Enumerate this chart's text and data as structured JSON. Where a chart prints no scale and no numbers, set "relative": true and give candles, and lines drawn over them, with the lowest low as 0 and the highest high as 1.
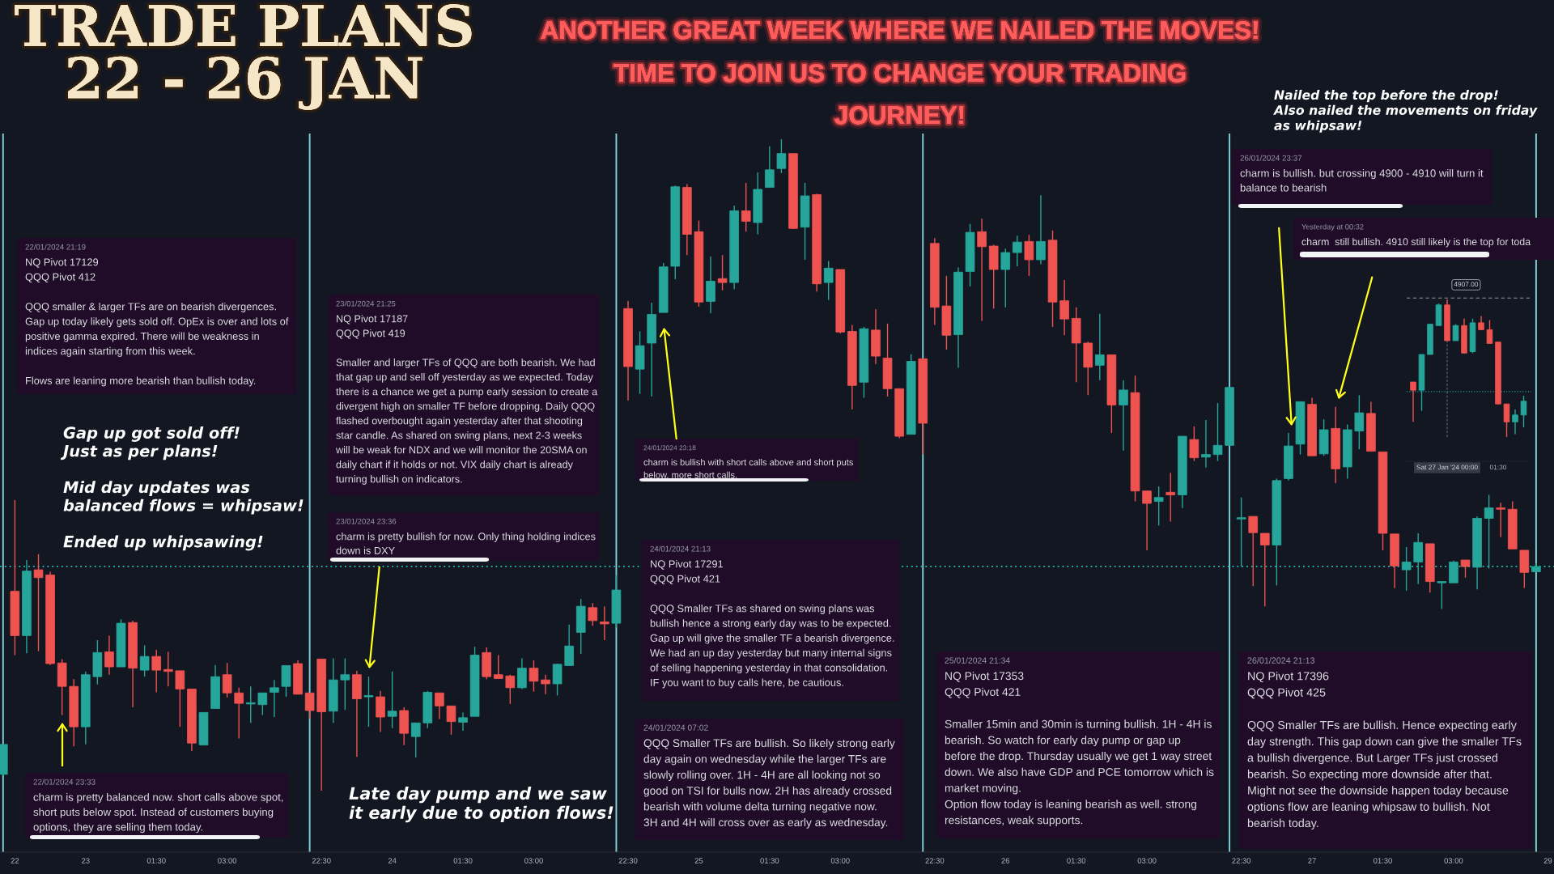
{
  "chart_data": [
    {
      "type": "candlestick",
      "relative": true,
      "title": "TRADE PLANS\n22 - 26 JAN",
      "subtitle": "ANOTHER GREAT WEEK WHERE WE NAILED THE MOVES!\nTIME TO JOIN US TO CHANGE YOUR TRADING\nJOURNEY!",
      "categories": [
        null,
        "22",
        null,
        null,
        null,
        null,
        null,
        "23",
        null,
        null,
        null,
        null,
        null,
        "01:30",
        null,
        null,
        null,
        null,
        null,
        "03:00",
        null,
        null,
        null,
        null,
        null,
        null,
        null,
        "22:30",
        null,
        null,
        null,
        null,
        null,
        "24",
        null,
        null,
        null,
        null,
        null,
        "01:30",
        null,
        null,
        null,
        null,
        null,
        "03:00",
        null,
        null,
        null,
        null,
        null,
        null,
        null,
        "22:30",
        null,
        null,
        null,
        null,
        null,
        "25",
        null,
        null,
        null,
        null,
        null,
        "01:30",
        null,
        null,
        null,
        null,
        null,
        "03:00",
        null,
        null,
        null,
        null,
        null,
        null,
        null,
        "22:30",
        null,
        null,
        null,
        null,
        null,
        "26",
        null,
        null,
        null,
        null,
        null,
        "01:30",
        null,
        null,
        null,
        null,
        null,
        "03:00",
        null,
        null,
        null,
        null,
        null,
        null,
        null,
        "22:30",
        null,
        null,
        null,
        null,
        null,
        "27",
        null,
        null,
        null,
        null,
        null,
        "01:30",
        null,
        null,
        null,
        null,
        null,
        "03:00",
        null,
        null,
        null,
        null,
        null,
        null,
        null,
        "29"
      ],
      "ohlc": [
        [
          0.025,
          0.071,
          0.023,
          0.071
        ],
        [
          0.306,
          0.446,
          0.208,
          0.238
        ],
        [
          0.238,
          0.354,
          0.211,
          0.337
        ],
        [
          0.339,
          0.363,
          0.214,
          0.327
        ],
        [
          0.331,
          0.336,
          0.193,
          0.195
        ],
        [
          0.196,
          0.202,
          0.116,
          0.16
        ],
        [
          0.16,
          0.171,
          0.068,
          0.098
        ],
        [
          0.098,
          0.183,
          0.071,
          0.178
        ],
        [
          0.175,
          0.231,
          0.163,
          0.212
        ],
        [
          0.213,
          0.238,
          0.178,
          0.19
        ],
        [
          0.19,
          0.263,
          0.19,
          0.257
        ],
        [
          0.258,
          0.261,
          0.128,
          0.188
        ],
        [
          0.185,
          0.223,
          0.175,
          0.206
        ],
        [
          0.206,
          0.216,
          0.151,
          0.185
        ],
        [
          0.186,
          0.213,
          0.16,
          0.183
        ],
        [
          0.184,
          0.184,
          0.098,
          0.156
        ],
        [
          0.156,
          0.156,
          0.061,
          0.073
        ],
        [
          0.07,
          0.12,
          0.07,
          0.12
        ],
        [
          0.126,
          0.193,
          0.126,
          0.175
        ],
        [
          0.178,
          0.196,
          0.143,
          0.15
        ],
        [
          0.15,
          0.158,
          0.08,
          0.134
        ],
        [
          0.133,
          0.16,
          0.104,
          0.135
        ],
        [
          0.132,
          0.15,
          0.116,
          0.15
        ],
        [
          0.151,
          0.17,
          0.113,
          0.158
        ],
        [
          0.16,
          0.192,
          0.144,
          0.192
        ],
        [
          0.195,
          0.2,
          0.148,
          0.148
        ],
        [
          0.15,
          0.15,
          0.111,
          0.123
        ],
        [
          0.202,
          0.202,
          0,
          0.121
        ],
        [
          0.122,
          0.203,
          0.104,
          0.17
        ],
        [
          0.17,
          0.203,
          0.124,
          0.178
        ],
        [
          0.178,
          0.184,
          0.052,
          0.141
        ],
        [
          0.144,
          0.175,
          0.098,
          0.146
        ],
        [
          0.144,
          0.153,
          0.09,
          0.113
        ],
        [
          0.114,
          0.183,
          0.096,
          0.122
        ],
        [
          0.123,
          0.128,
          0.07,
          0.088
        ],
        [
          0.083,
          0.104,
          0.051,
          0.104
        ],
        [
          0.104,
          0.153,
          0.096,
          0.151
        ],
        [
          0.15,
          0.15,
          0.11,
          0.13
        ],
        [
          0.13,
          0.13,
          0.086,
          0.106
        ],
        [
          0.105,
          0.12,
          0.092,
          0.112
        ],
        [
          0.114,
          0.221,
          0.114,
          0.208
        ],
        [
          0.212,
          0.22,
          0.171,
          0.175
        ],
        [
          0.178,
          0.208,
          0.172,
          0.172
        ],
        [
          0.176,
          0.178,
          0.133,
          0.158
        ],
        [
          0.158,
          0.203,
          0.156,
          0.188
        ],
        [
          0.188,
          0.2,
          0.152,
          0.168
        ],
        [
          0.17,
          0.178,
          0.148,
          0.164
        ],
        [
          0.164,
          0.195,
          0.146,
          0.194
        ],
        [
          0.192,
          0.255,
          0.192,
          0.222
        ],
        [
          0.243,
          0.294,
          0.21,
          0.283
        ],
        [
          0.281,
          0.288,
          0.253,
          0.261
        ],
        [
          0.259,
          0.283,
          0.231,
          0.256
        ],
        [
          0.257,
          0.331,
          0.25,
          0.308
        ],
        [
          0.74,
          0.752,
          0.599,
          0.651
        ],
        [
          0.647,
          0.705,
          0.609,
          0.683
        ],
        [
          0.687,
          0.749,
          0.605,
          0.731
        ],
        [
          0.734,
          0.81,
          0.734,
          0.804
        ],
        [
          0.805,
          0.929,
          0.785,
          0.927
        ],
        [
          0.926,
          0.931,
          0.822,
          0.854
        ],
        [
          0.858,
          0.875,
          0.743,
          0.75
        ],
        [
          0.751,
          0.82,
          0.733,
          0.782
        ],
        [
          0.786,
          0.822,
          0.768,
          0.78
        ],
        [
          0.78,
          0.898,
          0.77,
          0.89
        ],
        [
          0.89,
          0.933,
          0.858,
          0.874
        ],
        [
          0.872,
          0.949,
          0.854,
          0.923
        ],
        [
          0.926,
          0.989,
          0.926,
          0.953
        ],
        [
          0.955,
          1,
          0.948,
          0.978
        ],
        [
          0.978,
          0.978,
          0.862,
          0.863
        ],
        [
          0.865,
          0.933,
          0.815,
          0.913
        ],
        [
          0.915,
          0.916,
          0.766,
          0.778
        ],
        [
          0.78,
          0.813,
          0.753,
          0.802
        ],
        [
          0.8,
          0.8,
          0.702,
          0.704
        ],
        [
          0.705,
          0.715,
          0.585,
          0.622
        ],
        [
          0.627,
          0.712,
          0.603,
          0.709
        ],
        [
          0.707,
          0.739,
          0.655,
          0.667
        ],
        [
          0.664,
          0.717,
          0.605,
          0.617
        ],
        [
          0.617,
          0.617,
          0.541,
          0.544
        ],
        [
          0.547,
          0.67,
          0.547,
          0.659
        ],
        [
          0.663,
          0.664,
          0.516,
          0.564
        ],
        [
          0.84,
          0.848,
          0.715,
          0.742
        ],
        [
          0.744,
          0.79,
          0.677,
          0.699
        ],
        [
          0.7,
          0.803,
          0.649,
          0.796
        ],
        [
          0.797,
          0.87,
          0.774,
          0.857
        ],
        [
          0.858,
          0.878,
          0.721,
          0.835
        ],
        [
          0.836,
          0.838,
          0.74,
          0.8
        ],
        [
          0.8,
          0.832,
          0.742,
          0.826
        ],
        [
          0.826,
          0.852,
          0.805,
          0.842
        ],
        [
          0.843,
          0.853,
          0.79,
          0.815
        ],
        [
          0.815,
          0.914,
          0.808,
          0.843
        ],
        [
          0.845,
          0.86,
          0.712,
          0.75
        ],
        [
          0.752,
          0.784,
          0.699,
          0.724
        ],
        [
          0.725,
          0.742,
          0.627,
          0.687
        ],
        [
          0.687,
          0.689,
          0.607,
          0.65
        ],
        [
          0.653,
          0.732,
          0.63,
          0.669
        ],
        [
          0.669,
          0.669,
          0.549,
          0.592
        ],
        [
          0.592,
          0.63,
          0.522,
          0.615
        ],
        [
          0.611,
          0.637,
          0.444,
          0.46
        ],
        [
          0.46,
          0.46,
          0.369,
          0.441
        ],
        [
          0.444,
          0.467,
          0.407,
          0.45
        ],
        [
          0.458,
          0.488,
          0.413,
          0.454
        ],
        [
          0.454,
          0.544,
          0.434,
          0.544
        ],
        [
          0.539,
          0.559,
          0.506,
          0.511
        ],
        [
          0.512,
          0.569,
          0.496,
          0.516
        ],
        [
          0.516,
          0.595,
          0.506,
          0.53
        ],
        [
          0.53,
          0.619,
          0.529,
          0.619
        ],
        [
          0.417,
          0.45,
          0.344,
          0.419
        ],
        [
          0.421,
          0.421,
          0.314,
          0.396
        ],
        [
          0.395,
          0.395,
          0.283,
          0.377
        ],
        [
          0.377,
          0.479,
          0.315,
          0.476
        ],
        [
          0.479,
          0.549,
          0.476,
          0.529
        ],
        [
          0.532,
          0.597,
          0.516,
          0.597
        ],
        [
          0.593,
          0.603,
          0.514,
          0.514
        ],
        [
          0.517,
          0.57,
          0.514,
          0.554
        ],
        [
          0.556,
          0.589,
          0.472,
          0.494
        ],
        [
          0.497,
          0.562,
          0.479,
          0.554
        ],
        [
          0.552,
          0.607,
          0.524,
          0.58
        ],
        [
          0.579,
          0.597,
          0.521,
          0.521
        ],
        [
          0.52,
          0.52,
          0.369,
          0.395
        ],
        [
          0.394,
          0.394,
          0.311,
          0.345
        ],
        [
          0.339,
          0.374,
          0.307,
          0.351
        ],
        [
          0.351,
          0.395,
          0.317,
          0.381
        ],
        [
          0.379,
          0.379,
          0.304,
          0.321
        ],
        [
          0.319,
          0.321,
          0.279,
          0.321
        ],
        [
          0.319,
          0.353,
          0.319,
          0.351
        ],
        [
          0.354,
          0.354,
          0.327,
          0.344
        ],
        [
          0.343,
          0.421,
          0.309,
          0.418
        ],
        [
          0.418,
          0.454,
          0.341,
          0.434
        ],
        [
          0.434,
          0.442,
          0.389,
          0.432
        ],
        [
          0.432,
          0.444,
          0.371,
          0.371
        ],
        [
          0.369,
          0.369,
          0.311,
          0.335
        ],
        [
          0.336,
          0.349,
          0.336,
          0.344
        ],
        null
      ],
      "colors": [
        "#26a69a",
        "#ef5350",
        "#26a69a",
        "#ef5350",
        "#ef5350",
        "#ef5350",
        "#ef5350",
        "#26a69a",
        "#26a69a",
        "#ef5350",
        "#26a69a",
        "#ef5350",
        "#26a69a",
        "#ef5350",
        "#ef5350",
        "#ef5350",
        "#ef5350",
        "#26a69a",
        "#26a69a",
        "#ef5350",
        "#ef5350",
        "#26a69a",
        "#26a69a",
        "#26a69a",
        "#26a69a",
        "#ef5350",
        "#ef5350",
        "#ef5350",
        "#26a69a",
        "#26a69a",
        "#ef5350",
        "#26a69a",
        "#ef5350",
        "#26a69a",
        "#ef5350",
        "#26a69a",
        "#26a69a",
        "#ef5350",
        "#ef5350",
        "#26a69a",
        "#26a69a",
        "#ef5350",
        "#ef5350",
        "#ef5350",
        "#26a69a",
        "#ef5350",
        "#ef5350",
        "#26a69a",
        "#26a69a",
        "#26a69a",
        "#ef5350",
        "#ef5350",
        "#26a69a",
        "#ef5350",
        "#26a69a",
        "#26a69a",
        "#26a69a",
        "#26a69a",
        "#ef5350",
        "#ef5350",
        "#26a69a",
        "#ef5350",
        "#26a69a",
        "#ef5350",
        "#26a69a",
        "#26a69a",
        "#26a69a",
        "#ef5350",
        "#26a69a",
        "#ef5350",
        "#26a69a",
        "#ef5350",
        "#ef5350",
        "#26a69a",
        "#ef5350",
        "#ef5350",
        "#ef5350",
        "#26a69a",
        "#ef5350",
        "#ef5350",
        "#ef5350",
        "#26a69a",
        "#26a69a",
        "#ef5350",
        "#ef5350",
        "#26a69a",
        "#26a69a",
        "#ef5350",
        "#26a69a",
        "#ef5350",
        "#ef5350",
        "#ef5350",
        "#ef5350",
        "#26a69a",
        "#ef5350",
        "#26a69a",
        "#ef5350",
        "#ef5350",
        "#26a69a",
        "#ef5350",
        "#26a69a",
        "#ef5350",
        "#26a69a",
        "#26a69a",
        "#26a69a",
        "#26a69a",
        "#ef5350",
        "#ef5350",
        "#26a69a",
        "#26a69a",
        "#26a69a",
        "#ef5350",
        "#26a69a",
        "#ef5350",
        "#26a69a",
        "#26a69a",
        "#ef5350",
        "#ef5350",
        "#ef5350",
        "#26a69a",
        "#26a69a",
        "#ef5350",
        "#26a69a",
        "#26a69a",
        "#ef5350",
        "#26a69a",
        "#26a69a",
        "#ef5350",
        "#ef5350",
        "#ef5350",
        "#26a69a",
        null
      ],
      "ref_lines": [
        {
          "axis": "y",
          "value": 0.344,
          "line_style": "dotted",
          "color": "#26a69a"
        }
      ],
      "annotations": [
        "22/01/2024 21:19",
        "NQ Pivot 17129\nQQQ Pivot 412\n\nQQQ smaller & larger TFs are on bearish divergences.\nGap up today likely gets sold off. OpEx is over and lots of\npositive gamma expired. There will be weakness in\nindices again starting from this week.\n\nFlows are leaning more bearish than bullish today.",
        "22/01/2024 23:33",
        "charm is pretty balanced now. short calls above spot,\nshort puts below spot. Instead of customers buying\noptions, they are selling them today.",
        "23/01/2024 21:25",
        "NQ Pivot 17187\nQQQ Pivot 419\n\nSmaller and larger TFs of QQQ are both bearish. We had\nthat gap up and sell off yesterday as we expected. Today\nthere is a chance we get a pump early session to create a\ndivergent high on smaller TF before dropping. Daily QQQ\nflashed overbought again yesterday after that shooting\nstar candle. As shared on swing plans, next 2-3 weeks\nwill be weak for NDX and we will monitor the 20SMA on\ndaily chart if it holds or not. VIX daily chart is already\nturning bullish on indicators.",
        "23/01/2024 23:36",
        "charm is pretty bullish for now. Only thing holding indices\ndown is DXY",
        "24/01/2024 23:18",
        "charm is bullish with short calls above and short puts\nbelow. more short calls.",
        "24/01/2024 21:13",
        "NQ Pivot 17291\nQQQ Pivot 421\n\nQQQ Smaller TFs as shared on swing plans was\nbullish hence a strong early day was to be expected.\nGap up will give the smaller TF a bearish divergence.\nWe had an up day yesterday but many internal signs\nof selling happening yesterday in that consolidation.\nIF you want to buy calls here, be cautious.",
        "24/01/2024 07:02",
        "QQQ Smaller TFs are bullish. So likely strong early\nday again on wednesday while the larger TFs are\nslowly rolling over. 1H - 4H are all looking not so\ngood on TSI for bulls now. 2H has already crossed\nbearish with volume delta turning negative now.\n3H and 4H will cross over as early as wednesday.",
        "25/01/2024 21:34",
        "NQ Pivot 17353\nQQQ Pivot 421\n\nSmaller 15min and 30min is turning bullish. 1H - 4H is\nbearish. So watch for early day pump or gap up\nbefore the drop. Thursday usually we get 1 way street\ndown. We also have GDP and PCE tomorrow which is\nmarket moving.\nOption flow today is leaning bearish as well. strong\nresistances, weak supports.",
        "26/01/2024 23:37",
        "charm is bullish. but crossing 4900 - 4910 will turn it\nbalance to bearish",
        "Yesterday at 00:32",
        "charm  still bullish. 4910 still likely is the top for toda",
        "26/01/2024 21:13",
        "NQ Pivot 17396\nQQQ Pivot 425\n\nQQQ Smaller TFs are bullish. Hence expecting early\nday strength. This gap down can give the smaller TFs\na bullish divergence. But Larger TFs just crossed\nbearish. So expecting more downside after that.\nMight not see the downside happen today because\noptions flow are leaning whipsaw to bullish. Not\nbearish today.",
        "Gap up got sold off!\nJust as per plans!\n\nMid day updates was\nbalanced flows = whipsaw!\n\nEnded up whipsawing!",
        "Late day pump and we saw\nit early due to option flows!",
        "Nailed the top before the drop!\nAlso nailed the movements on friday\nas whipsaw!"
      ]
    },
    {
      "type": "candlestick",
      "relative": true,
      "categories": [
        null,
        null,
        null,
        null,
        "Sat 27 Jan '24 00:00",
        null,
        null,
        null,
        null,
        null,
        "01:30",
        null,
        null,
        null
      ],
      "ohlc": [
        [
          0.4,
          0.4,
          0.11,
          0.34
        ],
        [
          0.34,
          0.6,
          0.19,
          0.6
        ],
        [
          0.6,
          0.82,
          0.6,
          0.82
        ],
        [
          0.81,
          0.97,
          0.81,
          0.96
        ],
        [
          0.96,
          1,
          0.7,
          0.7
        ],
        [
          0.7,
          0.82,
          0.7,
          0.81
        ],
        [
          0.81,
          0.86,
          0.61,
          0.61
        ],
        [
          0.62,
          0.86,
          0.61,
          0.83
        ],
        [
          0.83,
          0.88,
          0.78,
          0.78
        ],
        [
          0.78,
          0.85,
          0.68,
          0.68
        ],
        [
          0.69,
          0.69,
          0.24,
          0.24
        ],
        [
          0.24,
          0.24,
          0,
          0.11
        ],
        [
          0.11,
          0.2,
          0.02,
          0.16
        ],
        [
          0.16,
          0.3,
          0.07,
          0.26
        ]
      ],
      "colors": [
        "#ef5350",
        "#26a69a",
        "#26a69a",
        "#26a69a",
        "#ef5350",
        "#26a69a",
        "#ef5350",
        "#26a69a",
        "#ef5350",
        "#ef5350",
        "#ef5350",
        "#ef5350",
        "#26a69a",
        "#26a69a"
      ],
      "ref_lines": [
        {
          "axis": "x",
          "value": "Sat 27 Jan '24 00:00",
          "line_style": "dashed",
          "color": "#9598a1"
        },
        {
          "axis": "y",
          "value": 1.01,
          "line_style": "dashed",
          "color": "#9598a1"
        },
        {
          "axis": "y",
          "value": 0.33,
          "line_style": "dotted",
          "color": "#26a69a"
        }
      ],
      "annotations": [
        {
          "text": "4907.00",
          "x": "Sat 27 Jan '24 00:00",
          "y": 1.01
        }
      ]
    }
  ]
}
